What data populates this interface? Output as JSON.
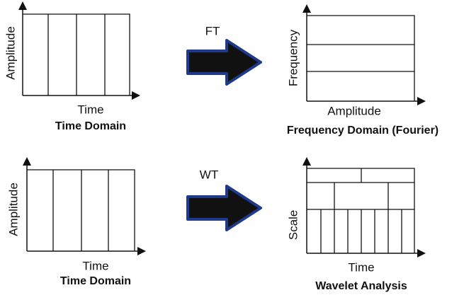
{
  "panels": [
    {
      "y_label": "Amplitude",
      "x_label": "Time",
      "caption": "Time Domain"
    },
    {
      "y_label": "Frequency",
      "x_label": "Amplitude",
      "caption": "Frequency Domain (Fourier)"
    },
    {
      "y_label": "Amplitude",
      "x_label": "Time",
      "caption": "Time Domain"
    },
    {
      "y_label": "Scale",
      "x_label": "Time",
      "caption": "Wavelet Analysis"
    }
  ],
  "arrows": [
    {
      "label": "FT"
    },
    {
      "label": "WT"
    }
  ]
}
